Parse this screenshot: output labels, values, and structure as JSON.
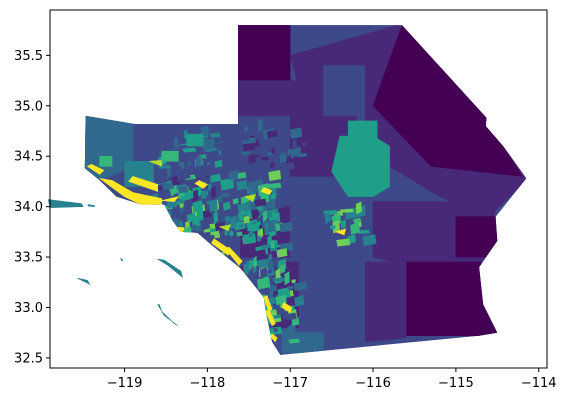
{
  "chart_data": {
    "type": "heatmap",
    "title": "",
    "xlabel": "",
    "ylabel": "",
    "xlim": [
      -119.9,
      -113.9
    ],
    "ylim": [
      32.4,
      35.95
    ],
    "grid": false,
    "x_ticks": [
      -119,
      -118,
      -117,
      -116,
      -115,
      -114
    ],
    "x_tick_labels": [
      "−119",
      "−118",
      "−117",
      "−116",
      "−115",
      "−114"
    ],
    "y_ticks": [
      32.5,
      33.0,
      33.5,
      34.0,
      34.5,
      35.0,
      35.5
    ],
    "y_tick_labels": [
      "32.5",
      "33.0",
      "33.5",
      "34.0",
      "34.5",
      "35.0",
      "35.5"
    ],
    "colormap": "viridis",
    "colors": {
      "darkest": "#440154",
      "dark_purple": "#482878",
      "indigo": "#3e4989",
      "blue": "#31688e",
      "teal": "#26828e",
      "green_teal": "#1f9e89",
      "green": "#35b779",
      "light_green": "#6ece58",
      "yellow_green": "#b5de2b",
      "yellow": "#fde725"
    }
  }
}
